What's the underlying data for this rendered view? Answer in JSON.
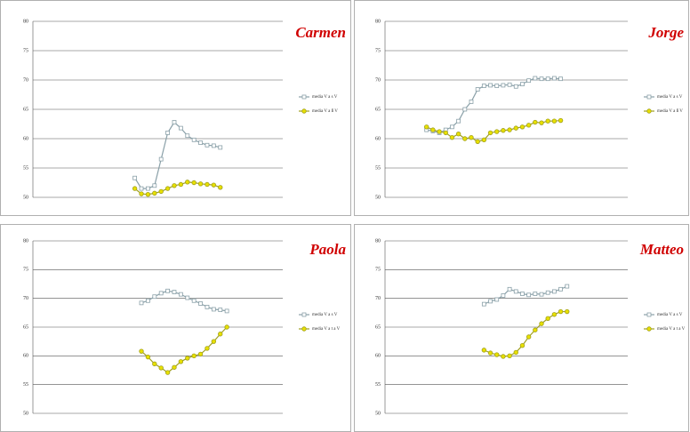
{
  "chart_data": [
    {
      "type": "line",
      "title": "Carmen",
      "ylim": [
        50,
        80
      ],
      "yticks": [
        50,
        55,
        60,
        65,
        70,
        75,
        80
      ],
      "grid": true,
      "categories": [
        null,
        null,
        null,
        null,
        null,
        null,
        null,
        null,
        null,
        null,
        null,
        null,
        null,
        null,
        null,
        null,
        null,
        null,
        null,
        null,
        null,
        null,
        null,
        null,
        null,
        null,
        null,
        null,
        null,
        null,
        null,
        null,
        null,
        null,
        null,
        null,
        null,
        null
      ],
      "series": [
        {
          "name": "media V a s V",
          "color": "#8aa0a8",
          "values": [
            null,
            null,
            null,
            null,
            null,
            null,
            null,
            null,
            null,
            null,
            null,
            null,
            null,
            null,
            null,
            53.3,
            51.5,
            51.5,
            52,
            56.5,
            61,
            62.8,
            61.8,
            60.5,
            59.8,
            59.3,
            58.9,
            58.8,
            58.5,
            null,
            null,
            null,
            null,
            null,
            null,
            null,
            null,
            null
          ]
        },
        {
          "name": "media V a ß V",
          "color": "#a0a020",
          "values": [
            null,
            null,
            null,
            null,
            null,
            null,
            null,
            null,
            null,
            null,
            null,
            null,
            null,
            null,
            null,
            51.5,
            50.6,
            50.5,
            50.7,
            51,
            51.5,
            52,
            52.2,
            52.6,
            52.5,
            52.3,
            52.2,
            52.1,
            51.7,
            null,
            null,
            null,
            null,
            null,
            null,
            null,
            null,
            null
          ]
        }
      ]
    },
    {
      "type": "line",
      "title": "Jorge",
      "ylim": [
        50,
        80
      ],
      "yticks": [
        50,
        55,
        60,
        65,
        70,
        75,
        80
      ],
      "grid": true,
      "categories": [
        null,
        null,
        null,
        null,
        null,
        null,
        null,
        null,
        null,
        null,
        null,
        null,
        null,
        null,
        null,
        null,
        null,
        null,
        null,
        null,
        null,
        null,
        null,
        null,
        null,
        null,
        null,
        null,
        null,
        null,
        null,
        null,
        null,
        null,
        null,
        null,
        null,
        null
      ],
      "series": [
        {
          "name": "media V a s V",
          "color": "#8aa0a8",
          "values": [
            null,
            null,
            null,
            null,
            null,
            null,
            61.5,
            61.3,
            61,
            61.5,
            62,
            63,
            65,
            66.3,
            68.4,
            69,
            69.1,
            69,
            69.1,
            69.2,
            68.9,
            69.3,
            69.9,
            70.3,
            70.2,
            70.2,
            70.3,
            70.2,
            null,
            null,
            null,
            null,
            null,
            null,
            null,
            null,
            null,
            null
          ]
        },
        {
          "name": "media V a ß V",
          "color": "#a0a020",
          "values": [
            null,
            null,
            null,
            null,
            null,
            null,
            62,
            61.5,
            61.2,
            61,
            60.2,
            60.8,
            60,
            60.2,
            59.5,
            59.8,
            61,
            61.2,
            61.4,
            61.5,
            61.8,
            62,
            62.3,
            62.8,
            62.7,
            63,
            63,
            63.1,
            null,
            null,
            null,
            null,
            null,
            null,
            null,
            null,
            null,
            null
          ]
        }
      ]
    },
    {
      "type": "line",
      "title": "Paola",
      "ylim": [
        50,
        80
      ],
      "yticks": [
        50,
        55,
        60,
        65,
        70,
        75,
        80
      ],
      "grid": true,
      "categories": [
        null,
        null,
        null,
        null,
        null,
        null,
        null,
        null,
        null,
        null,
        null,
        null,
        null,
        null,
        null,
        null,
        null,
        null,
        null,
        null,
        null,
        null,
        null,
        null,
        null,
        null,
        null,
        null,
        null,
        null,
        null,
        null,
        null,
        null,
        null,
        null,
        null,
        null
      ],
      "series": [
        {
          "name": "media V a s V",
          "color": "#8aa0a8",
          "values": [
            null,
            null,
            null,
            null,
            null,
            null,
            null,
            null,
            null,
            null,
            null,
            null,
            null,
            null,
            null,
            null,
            69.2,
            69.6,
            70.3,
            70.9,
            71.3,
            71.1,
            70.7,
            70.1,
            69.6,
            69.1,
            68.5,
            68.1,
            68,
            67.8,
            null,
            null,
            null,
            null,
            null,
            null,
            null,
            null
          ]
        },
        {
          "name": "media V a t a V",
          "color": "#a0a020",
          "values": [
            null,
            null,
            null,
            null,
            null,
            null,
            null,
            null,
            null,
            null,
            null,
            null,
            null,
            null,
            null,
            null,
            60.8,
            59.8,
            58.6,
            57.9,
            57.1,
            58,
            59,
            59.6,
            60,
            60.3,
            61.3,
            62.5,
            63.8,
            65,
            null,
            null,
            null,
            null,
            null,
            null,
            null,
            null
          ]
        }
      ]
    },
    {
      "type": "line",
      "title": "Matteo",
      "ylim": [
        50,
        80
      ],
      "yticks": [
        50,
        55,
        60,
        65,
        70,
        75,
        80
      ],
      "grid": true,
      "categories": [
        null,
        null,
        null,
        null,
        null,
        null,
        null,
        null,
        null,
        null,
        null,
        null,
        null,
        null,
        null,
        null,
        null,
        null,
        null,
        null,
        null,
        null,
        null,
        null,
        null,
        null,
        null,
        null,
        null,
        null,
        null,
        null,
        null,
        null,
        null,
        null,
        null,
        null
      ],
      "series": [
        {
          "name": "media V a s V",
          "color": "#8aa0a8",
          "values": [
            null,
            null,
            null,
            null,
            null,
            null,
            null,
            null,
            null,
            null,
            null,
            null,
            null,
            null,
            null,
            69,
            69.5,
            69.8,
            70.5,
            71.6,
            71.2,
            70.8,
            70.6,
            70.8,
            70.7,
            71,
            71.2,
            71.6,
            72.1,
            null,
            null,
            null,
            null,
            null,
            null,
            null,
            null,
            null
          ]
        },
        {
          "name": "media V a t a V",
          "color": "#a0a020",
          "values": [
            null,
            null,
            null,
            null,
            null,
            null,
            null,
            null,
            null,
            null,
            null,
            null,
            null,
            null,
            null,
            61,
            60.5,
            60.2,
            59.9,
            60,
            60.6,
            61.8,
            63.3,
            64.5,
            65.6,
            66.5,
            67.2,
            67.7,
            67.7,
            null,
            null,
            null,
            null,
            null,
            null,
            null,
            null,
            null
          ]
        }
      ]
    }
  ]
}
